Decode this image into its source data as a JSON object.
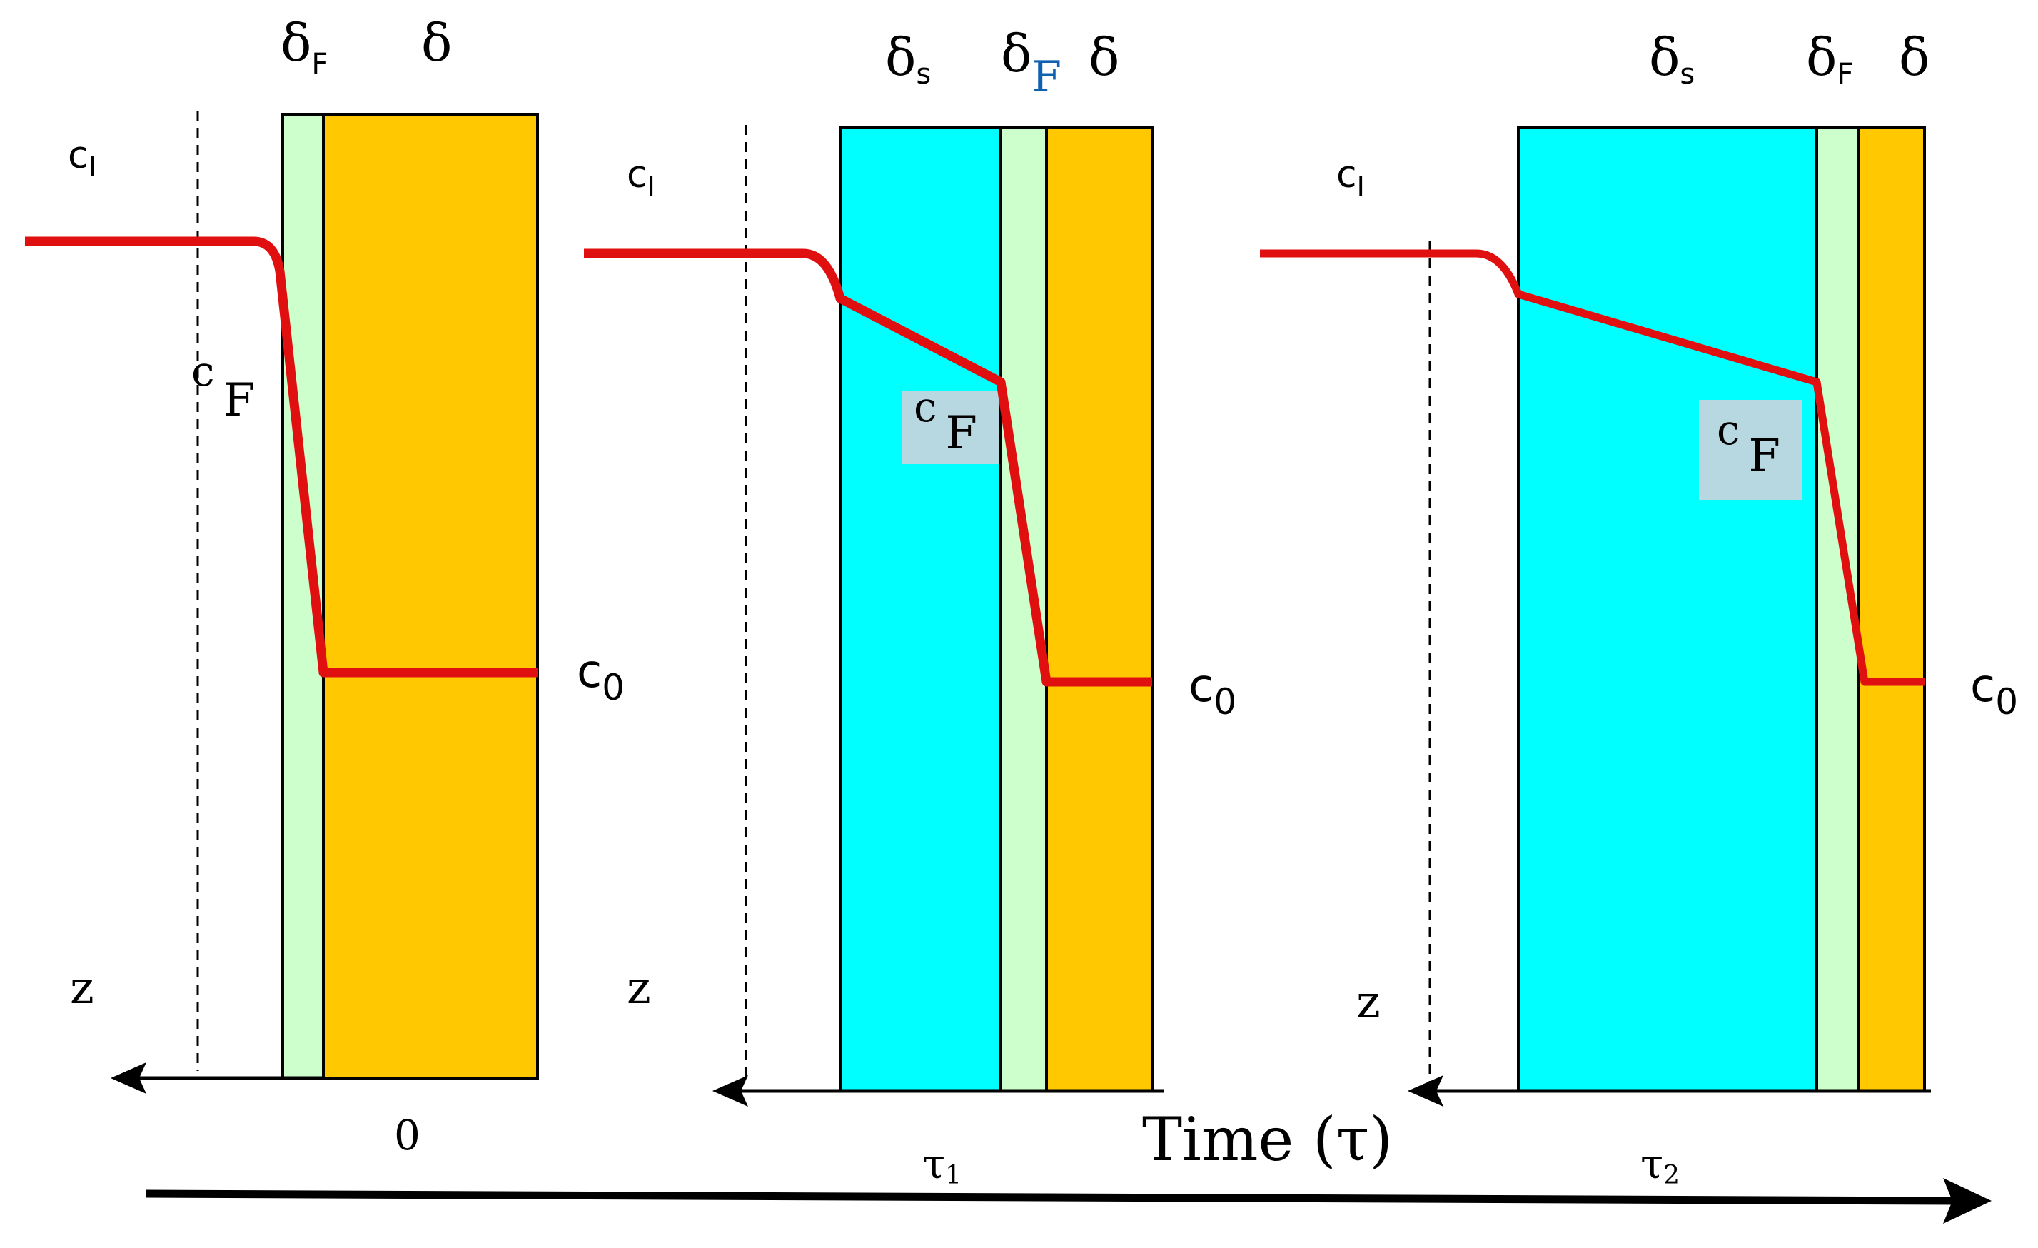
{
  "colors": {
    "film": "#ccffcc",
    "deposit": "#ffc800",
    "sediment": "#00ffff",
    "curve": "#e01010",
    "label_bg": "#b7d8e0"
  },
  "time_axis": {
    "label": "Time  (τ)"
  },
  "panels": [
    {
      "time_label": "0",
      "labels": {
        "c_i": "c",
        "c_i_sub": "I",
        "c_f": "c",
        "c_f_sub": "F",
        "c_0": "c",
        "c_0_sub": "0",
        "z": "z",
        "delta_f": "δ",
        "delta_f_sub": "F",
        "delta": "δ"
      }
    },
    {
      "time_label": "τ",
      "time_label_sub": "1",
      "labels": {
        "c_i": "c",
        "c_i_sub": "I",
        "c_f": "c",
        "c_f_sub": "F",
        "c_0": "c",
        "c_0_sub": "0",
        "z": "z",
        "delta_s": "δ",
        "delta_s_sub": "s",
        "delta_f": "δ",
        "delta_f_sub": "F",
        "delta": "δ"
      }
    },
    {
      "time_label": "τ",
      "time_label_sub": "2",
      "labels": {
        "c_i": "c",
        "c_i_sub": "I",
        "c_f": "c",
        "c_f_sub": "F",
        "c_0": "c",
        "c_0_sub": "0",
        "z": "z",
        "delta_s": "δ",
        "delta_s_sub": "s",
        "delta_f": "δ",
        "delta_f_sub": "F",
        "delta": "δ"
      }
    }
  ]
}
